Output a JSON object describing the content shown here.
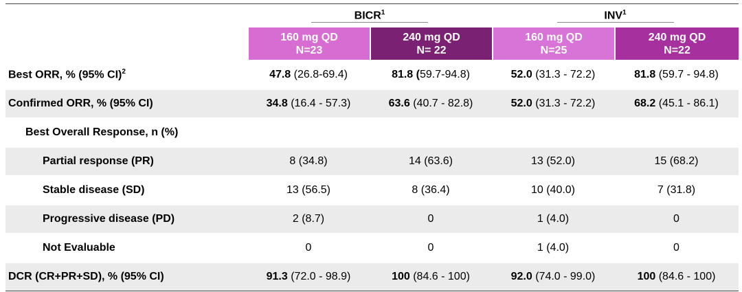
{
  "groups": [
    {
      "label": "BICR",
      "sup": "1"
    },
    {
      "label": "INV",
      "sup": "1"
    }
  ],
  "columns": [
    {
      "dose": "160 mg QD",
      "n": "N=23",
      "color": "#d76cd3"
    },
    {
      "dose": "240 mg QD",
      "n": "N= 22",
      "color": "#7b2173"
    },
    {
      "dose": "160 mg QD",
      "n": "N=25",
      "color": "#d873d8"
    },
    {
      "dose": "240 mg QD",
      "n": "N=22",
      "color": "#a5309e"
    }
  ],
  "rows": [
    {
      "label": "Best ORR, % (95%  CI)",
      "sup": "2",
      "level": 0,
      "cells": [
        {
          "b": "47.8",
          "t": "(26.8-69.4)"
        },
        {
          "b": "81.8 (",
          "t": "59.7-94.8)"
        },
        {
          "b": "52.0",
          "t": "(31.3 - 72.2)"
        },
        {
          "b": "81.8",
          "t": "(59.7 - 94.8)"
        }
      ]
    },
    {
      "label": "Confirmed ORR, % (95% CI)",
      "level": 0,
      "cells": [
        {
          "b": "34.8",
          "t": "(16.4 - 57.3)"
        },
        {
          "b": "63.6",
          "t": "(40.7 - 82.8)"
        },
        {
          "b": "52.0",
          "t": "(31.3 - 72.2)"
        },
        {
          "b": "68.2",
          "t": "(45.1 - 86.1)"
        }
      ]
    },
    {
      "label": "Best Overall Response, n (%)",
      "level": 1,
      "cells": []
    },
    {
      "label": "Partial response (PR)",
      "level": 2,
      "cells": [
        {
          "t": "8 (34.8)"
        },
        {
          "t": "14 (63.6)"
        },
        {
          "t": "13 (52.0)"
        },
        {
          "t": "15 (68.2)"
        }
      ]
    },
    {
      "label": "Stable disease (SD)",
      "level": 2,
      "cells": [
        {
          "t": "13 (56.5)"
        },
        {
          "t": "8 (36.4)"
        },
        {
          "t": "10 (40.0)"
        },
        {
          "t": "7 (31.8)"
        }
      ]
    },
    {
      "label": "Progressive disease (PD)",
      "level": 2,
      "cells": [
        {
          "t": "2 (8.7)"
        },
        {
          "t": "0"
        },
        {
          "t": "1 (4.0)"
        },
        {
          "t": "0"
        }
      ]
    },
    {
      "label": "Not Evaluable",
      "level": 2,
      "cells": [
        {
          "t": "0"
        },
        {
          "t": "0"
        },
        {
          "t": "1 (4.0)"
        },
        {
          "t": "0"
        }
      ]
    },
    {
      "label": "DCR (CR+PR+SD), % (95% CI)",
      "level": 0,
      "cells": [
        {
          "b": "91.3",
          "t": "(72.0 - 98.9)"
        },
        {
          "b": "100",
          "t": "(84.6 - 100)"
        },
        {
          "b": "92.0",
          "t": "(74.0 - 99.0)"
        },
        {
          "b": "100",
          "t": "(84.6 - 100)"
        }
      ]
    }
  ]
}
